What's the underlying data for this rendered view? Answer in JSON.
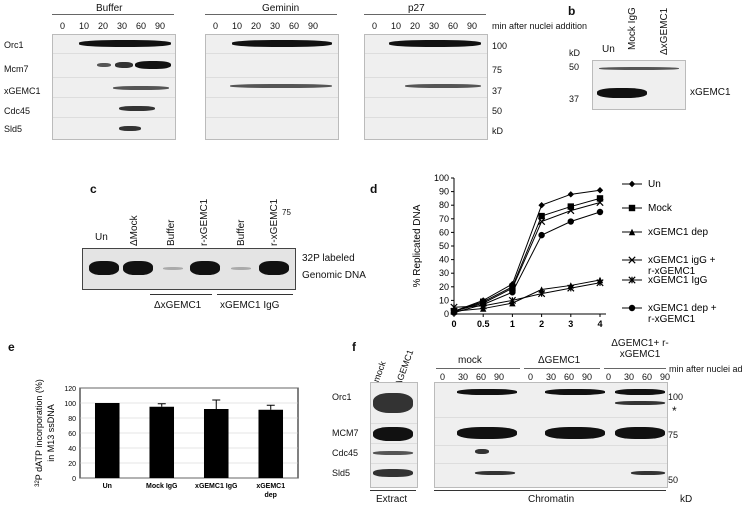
{
  "panel_a": {
    "conditions": [
      "Buffer",
      "Geminin",
      "p27"
    ],
    "timepoints": [
      "0",
      "10",
      "20",
      "30",
      "60",
      "90"
    ],
    "time_label": "min after nuclei addition",
    "rows": [
      "Orc1",
      "Mcm7",
      "xGEMC1",
      "Cdc45",
      "Sld5"
    ],
    "kd_marks": [
      "100",
      "75",
      "37",
      "50"
    ],
    "kd_unit": "kD"
  },
  "panel_b": {
    "letter": "b",
    "lanes": [
      "Un",
      "Mock IgG",
      "ΔxGEMC1"
    ],
    "kd_label": "kD",
    "kd_marks": [
      "50",
      "37"
    ],
    "band_label": "xGEMC1"
  },
  "panel_c": {
    "letter": "c",
    "lanes": [
      "Un",
      "ΔMock",
      "Buffer",
      "r-xGEMC1",
      "Buffer",
      "r-xGEMC1"
    ],
    "lane_suffix": "75",
    "labels": [
      "32P labeled",
      "Genomic DNA"
    ],
    "groups": [
      "ΔxGEMC1",
      "xGEMC1 IgG"
    ]
  },
  "panel_d": {
    "letter": "d"
  },
  "panel_e": {
    "letter": "e"
  },
  "panel_f": {
    "letter": "f",
    "extract_lanes": [
      "mock",
      "ΔGEMC1"
    ],
    "groups": [
      "mock",
      "ΔGEMC1",
      "ΔGEMC1+ r-xGEMC1"
    ],
    "timepoints": [
      "0",
      "30",
      "60",
      "90"
    ],
    "time_label": "min after nuclei addition",
    "rows": [
      "Orc1",
      "MCM7",
      "Cdc45",
      "Sld5"
    ],
    "kd_marks": [
      "100",
      "75",
      "50"
    ],
    "star": "*",
    "bottom_labels": [
      "Extract",
      "Chromatin"
    ],
    "kd_unit": "kD"
  },
  "chart_data": [
    {
      "panel": "d",
      "type": "line",
      "ylabel": "% Replicated DNA",
      "xlabel": "",
      "x": [
        0,
        0.5,
        1,
        2,
        3,
        4
      ],
      "x_ticks": [
        "0",
        "0.5",
        "1",
        "2",
        "3",
        "4"
      ],
      "ylim": [
        0,
        100
      ],
      "y_ticks": [
        "0",
        "10",
        "20",
        "30",
        "40",
        "50",
        "60",
        "70",
        "80",
        "90",
        "100"
      ],
      "series": [
        {
          "name": "Un",
          "marker": "diamond",
          "values": [
            2,
            10,
            22,
            80,
            88,
            91
          ]
        },
        {
          "name": "Mock",
          "marker": "square",
          "values": [
            2,
            9,
            20,
            72,
            79,
            85
          ]
        },
        {
          "name": "xGEMC1 dep",
          "marker": "triangle",
          "values": [
            2,
            4,
            8,
            18,
            21,
            25
          ]
        },
        {
          "name": "xGEMC1 igG + r-xGEMC1",
          "marker": "x",
          "values": [
            2,
            8,
            19,
            68,
            76,
            82
          ]
        },
        {
          "name": "xGEMC1 IgG",
          "marker": "star",
          "values": [
            5,
            6,
            10,
            15,
            19,
            23
          ]
        },
        {
          "name": "xGEMC1 dep + r-xGEMC1",
          "marker": "circle",
          "values": [
            1,
            7,
            16,
            58,
            68,
            75
          ]
        }
      ]
    },
    {
      "panel": "e",
      "type": "bar",
      "ylabel_prefix": "32",
      "ylabel": "P dATP incorporation (%)",
      "ylabel2": "in M13 ssDNA",
      "categories": [
        "Un",
        "Mock IgG",
        "xGEMC1 IgG",
        "xGEMC1 dep"
      ],
      "values": [
        100,
        95,
        92,
        91
      ],
      "errors": [
        0,
        4,
        12,
        6
      ],
      "ylim": [
        0,
        120
      ],
      "y_ticks": [
        "0",
        "20",
        "40",
        "60",
        "80",
        "100",
        "120"
      ]
    }
  ]
}
